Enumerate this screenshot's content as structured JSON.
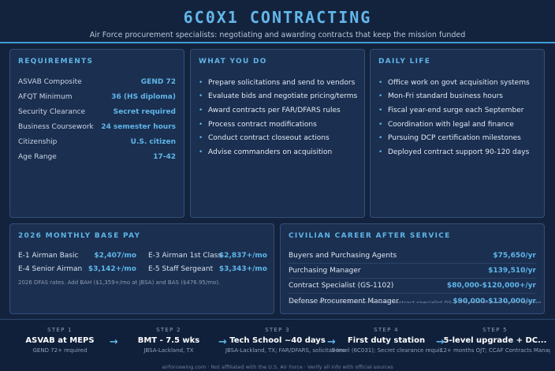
{
  "header": {
    "title": "6C0X1 CONTRACTING",
    "subtitle": "Air Force procurement specialists: negotiating and awarding contracts that keep the mission funded"
  },
  "requirements": {
    "title": "REQUIREMENTS",
    "rows": [
      {
        "label": "ASVAB Composite",
        "value": "GEND 72"
      },
      {
        "label": "AFQT Minimum",
        "value": "36 (HS diploma)"
      },
      {
        "label": "Security Clearance",
        "value": "Secret required"
      },
      {
        "label": "Business Coursework",
        "value": "24 semester hours"
      },
      {
        "label": "Citizenship",
        "value": "U.S. citizen"
      },
      {
        "label": "Age Range",
        "value": "17-42"
      }
    ]
  },
  "what_you_do": {
    "title": "WHAT YOU DO",
    "items": [
      "Prepare solicitations and send to vendors",
      "Evaluate bids and negotiate pricing/terms",
      "Award contracts per FAR/DFARS rules",
      "Process contract modifications",
      "Conduct contract closeout actions",
      "Advise commanders on acquisition"
    ]
  },
  "daily_life": {
    "title": "DAILY LIFE",
    "items": [
      "Office work on govt acquisition systems",
      "Mon-Fri standard business hours",
      "Fiscal year-end surge each September",
      "Coordination with legal and finance",
      "Pursuing DCP certification milestones",
      "Deployed contract support 90-120 days"
    ]
  },
  "pay": {
    "title": "2026 MONTHLY BASE PAY",
    "rows": [
      {
        "label": "E-1 Airman Basic",
        "value": "$2,407/mo"
      },
      {
        "label": "E-3 Airman 1st Class",
        "value": "$2,837+/mo"
      },
      {
        "label": "E-4 Senior Airman",
        "value": "$3,142+/mo"
      },
      {
        "label": "E-5 Staff Sergeant",
        "value": "$3,343+/mo"
      }
    ],
    "note": "2026 DFAS rates. Add BAH ($1,359+/mo at JBSA) and BAS ($476.95/mo)."
  },
  "civilian": {
    "title": "CIVILIAN CAREER AFTER SERVICE",
    "rows": [
      {
        "label": "Buyers and Purchasing Agents",
        "value": "$75,650/yr"
      },
      {
        "label": "Purchasing Manager",
        "value": "$139,510/yr"
      },
      {
        "label": "Contract Specialist (GS-1102)",
        "value": "$80,000-$120,000+/yr"
      },
      {
        "label": "Defense Procurement Manager",
        "value": "$90,000-$130,000/yr"
      }
    ],
    "note": "BLS OEWS May 2024 figures; federal contract specialist GS-1102 ranges vary by locality and grade"
  },
  "steps": [
    {
      "num": "STEP 1",
      "title": "ASVAB at MEPS",
      "sub": "GEND 72+ required"
    },
    {
      "num": "STEP 2",
      "title": "BMT - 7.5 wks",
      "sub": "JBSA-Lackland, TX"
    },
    {
      "num": "STEP 3",
      "title": "Tech School ~40 days",
      "sub": "JBSA-Lackland, TX; FAR/DFARS, solicitations"
    },
    {
      "num": "STEP 4",
      "title": "First duty station",
      "sub": "3-level (6C031); Secret clearance required"
    },
    {
      "num": "STEP 5",
      "title": "5-level upgrade + DC...",
      "sub": "12+ months OJT; CCAF Contracts Management"
    }
  ],
  "footer": "airforcewing.com · Not affiliated with the U.S. Air Force · Verify all info with official sources"
}
